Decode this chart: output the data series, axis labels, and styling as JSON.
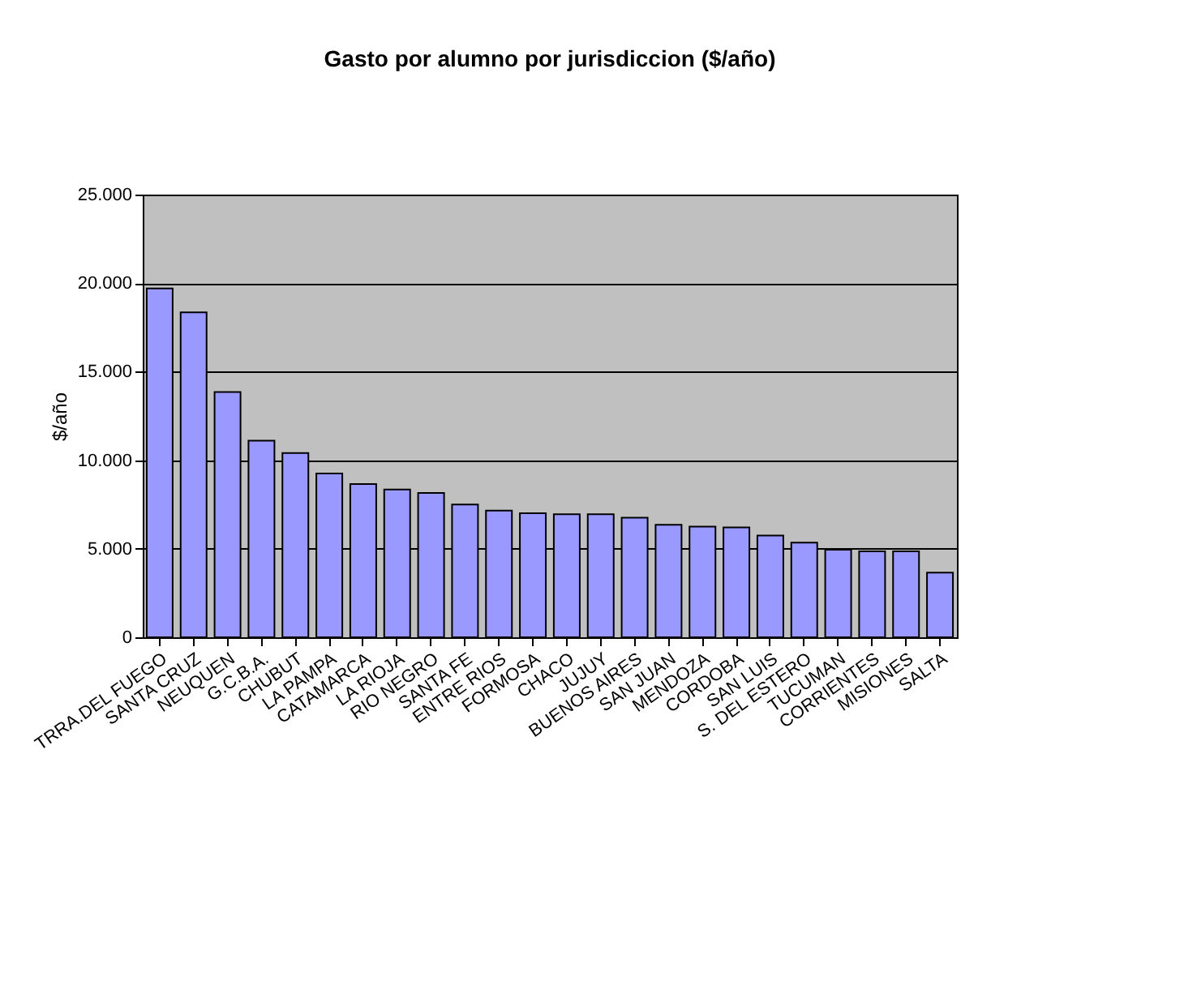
{
  "chart_data": {
    "type": "bar",
    "title": "Gasto por alumno por jurisdiccion ($/año)",
    "ylabel": "$/año",
    "categories": [
      "TRRA.DEL FUEGO",
      "SANTA CRUZ",
      "NEUQUEN",
      "G.C.B.A.",
      "CHUBUT",
      "LA PAMPA",
      "CATAMARCA",
      "LA RIOJA",
      "RIO NEGRO",
      "SANTA FE",
      "ENTRE RIOS",
      "FORMOSA",
      "CHACO",
      "JUJUY",
      "BUENOS AIRES",
      "SAN JUAN",
      "MENDOZA",
      "CORDOBA",
      "SAN LUIS",
      "S. DEL ESTERO",
      "TUCUMAN",
      "CORRIENTES",
      "MISIONES",
      "SALTA"
    ],
    "series": [
      {
        "color": "#9999ff",
        "values": [
          19700,
          18350,
          13850,
          11100,
          10400,
          9250,
          8650,
          8350,
          8150,
          7500,
          7150,
          7000,
          6950,
          6950,
          6750,
          6350,
          6250,
          6200,
          5750,
          5350,
          4950,
          4850,
          4850,
          3650
        ]
      }
    ],
    "ylim": [
      0,
      25000
    ],
    "yticks": [
      0,
      {
        "value": 5000,
        "label": "5.000"
      },
      {
        "value": 10000,
        "label": "10.000"
      },
      {
        "value": 15000,
        "label": "15.000"
      },
      {
        "value": 20000,
        "label": "20.000"
      },
      {
        "value": 25000,
        "label": "25.000"
      }
    ],
    "grid": "y"
  }
}
